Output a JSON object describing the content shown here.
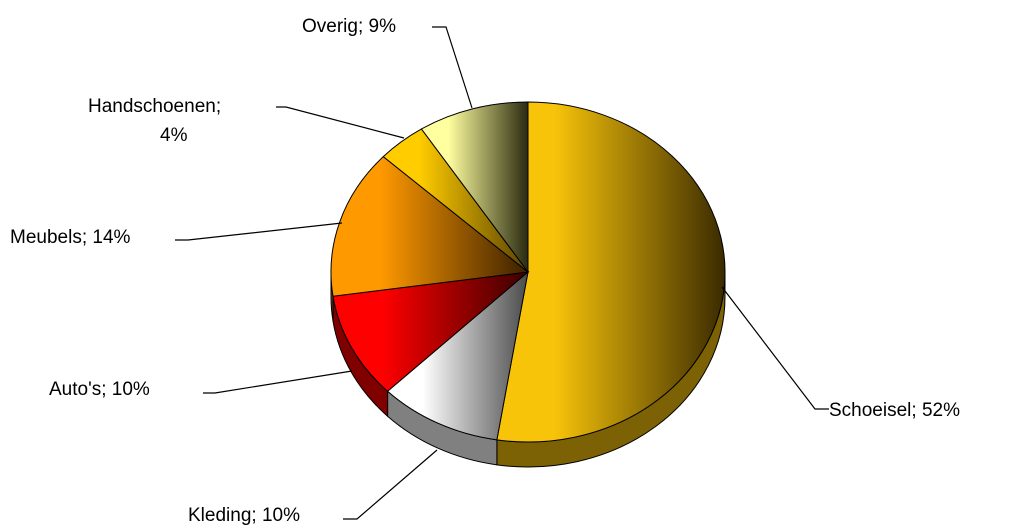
{
  "chart_data": {
    "type": "pie",
    "style": "3d",
    "title": "",
    "slices": [
      {
        "category": "Schoeisel",
        "value": 52,
        "label": "Schoeisel; 52%",
        "color": "#f8c40a",
        "dark": "#3a2a00"
      },
      {
        "category": "Kleding",
        "value": 10,
        "label": "Kleding; 10%",
        "color": "#ffffff",
        "dark": "#4a4a4a"
      },
      {
        "category": "Auto's",
        "value": 10,
        "label": "Auto's; 10%",
        "color": "#ff0000",
        "dark": "#3a0000"
      },
      {
        "category": "Meubels",
        "value": 14,
        "label": "Meubels; 14%",
        "color": "#ff9900",
        "dark": "#3a2000"
      },
      {
        "category": "Handschoenen",
        "value": 4,
        "label_lines": [
          "Handschoenen;",
          "4%"
        ],
        "color": "#ffcc00",
        "dark": "#5a4200"
      },
      {
        "category": "Overig",
        "value": 9,
        "label": "Overig; 9%",
        "color": "#ffffa0",
        "dark": "#2a2a10"
      }
    ],
    "legend": "none",
    "data_labels": "outside with leader lines"
  }
}
